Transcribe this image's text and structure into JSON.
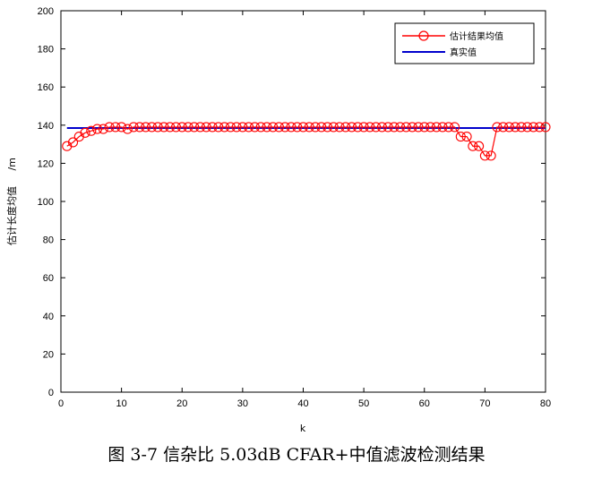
{
  "caption": "图 3-7  信杂比 5.03dB CFAR+中值滤波检测结果",
  "chart_data": {
    "type": "line",
    "title": "",
    "xlabel": "k",
    "ylabel": "估计长度均值     /m",
    "xlim": [
      0,
      80
    ],
    "ylim": [
      0,
      200
    ],
    "xticks": [
      0,
      10,
      20,
      30,
      40,
      50,
      60,
      70,
      80
    ],
    "yticks": [
      0,
      20,
      40,
      60,
      80,
      100,
      120,
      140,
      160,
      180,
      200
    ],
    "grid": false,
    "legend_position": "top-right",
    "series": [
      {
        "name": "估计结果均值",
        "color": "#ff0000",
        "marker": "circle",
        "x": [
          1,
          2,
          3,
          4,
          5,
          6,
          7,
          8,
          9,
          10,
          11,
          12,
          13,
          14,
          15,
          16,
          17,
          18,
          19,
          20,
          21,
          22,
          23,
          24,
          25,
          26,
          27,
          28,
          29,
          30,
          31,
          32,
          33,
          34,
          35,
          36,
          37,
          38,
          39,
          40,
          41,
          42,
          43,
          44,
          45,
          46,
          47,
          48,
          49,
          50,
          51,
          52,
          53,
          54,
          55,
          56,
          57,
          58,
          59,
          60,
          61,
          62,
          63,
          64,
          65,
          66,
          67,
          68,
          69,
          70,
          71,
          72,
          73,
          74,
          75,
          76,
          77,
          78,
          79,
          80
        ],
        "y": [
          129,
          131,
          134,
          136,
          137,
          138,
          138,
          139,
          139,
          139,
          138,
          139,
          139,
          139,
          139,
          139,
          139,
          139,
          139,
          139,
          139,
          139,
          139,
          139,
          139,
          139,
          139,
          139,
          139,
          139,
          139,
          139,
          139,
          139,
          139,
          139,
          139,
          139,
          139,
          139,
          139,
          139,
          139,
          139,
          139,
          139,
          139,
          139,
          139,
          139,
          139,
          139,
          139,
          139,
          139,
          139,
          139,
          139,
          139,
          139,
          139,
          139,
          139,
          139,
          139,
          134,
          134,
          129,
          129,
          124,
          124,
          139,
          139,
          139,
          139,
          139,
          139,
          139,
          139,
          139
        ]
      },
      {
        "name": "真实值",
        "color": "#0000cc",
        "marker": "none",
        "x": [
          1,
          80
        ],
        "y": [
          138.5,
          138.5
        ]
      }
    ]
  }
}
